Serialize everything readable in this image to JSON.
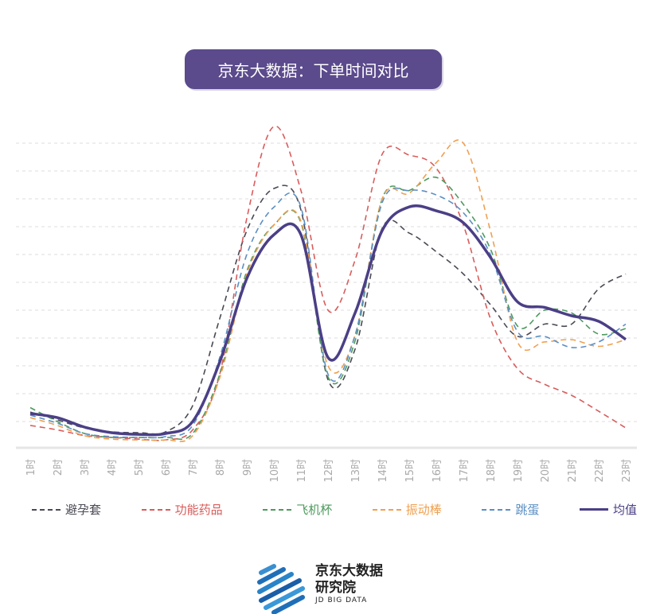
{
  "chart_data": {
    "type": "line",
    "title": "京东大数据：下单时间对比",
    "xlabel": "",
    "ylabel": "",
    "ylim": [
      0,
      12
    ],
    "grid": true,
    "legend_position": "bottom",
    "categories": [
      "1时",
      "2时",
      "3时",
      "4时",
      "5时",
      "6时",
      "7时",
      "8时",
      "9时",
      "10时",
      "11时",
      "12时",
      "13时",
      "14时",
      "15时",
      "16时",
      "17时",
      "18时",
      "19时",
      "20时",
      "21时",
      "22时",
      "23时"
    ],
    "series": [
      {
        "name": "避孕套",
        "color": "#4a4a55",
        "style": "dashed",
        "values": [
          1.34,
          1.06,
          0.77,
          0.63,
          0.6,
          0.63,
          1.57,
          4.7,
          7.86,
          9.37,
          8.6,
          2.5,
          3.6,
          7.94,
          7.77,
          7.1,
          6.3,
          5.2,
          4.06,
          4.5,
          4.5,
          5.77,
          6.3
        ]
      },
      {
        "name": "功能药品",
        "color": "#d95c5c",
        "style": "dashed",
        "values": [
          0.86,
          0.7,
          0.5,
          0.43,
          0.37,
          0.34,
          0.7,
          2.7,
          8.3,
          11.6,
          9.3,
          5.0,
          6.8,
          10.6,
          10.57,
          10.1,
          8.06,
          4.7,
          2.9,
          2.34,
          1.94,
          1.37,
          0.77
        ]
      },
      {
        "name": "飞机杯",
        "color": "#4e9a5e",
        "style": "dashed",
        "values": [
          1.5,
          1.0,
          0.57,
          0.43,
          0.43,
          0.43,
          0.57,
          2.7,
          6.4,
          8.06,
          8.14,
          2.6,
          3.9,
          9.0,
          9.3,
          9.77,
          8.8,
          7.2,
          4.43,
          5.0,
          4.9,
          4.14,
          4.34
        ]
      },
      {
        "name": "振动棒",
        "color": "#f0a050",
        "style": "dashed",
        "values": [
          1.14,
          0.86,
          0.49,
          0.37,
          0.34,
          0.34,
          0.49,
          2.57,
          6.3,
          8.06,
          8.2,
          3.0,
          4.1,
          9.0,
          9.2,
          10.3,
          11.0,
          7.86,
          3.86,
          3.86,
          3.94,
          3.7,
          3.94
        ]
      },
      {
        "name": "跳蛋",
        "color": "#5b8fc4",
        "style": "dashed",
        "values": [
          1.23,
          0.94,
          0.57,
          0.46,
          0.43,
          0.46,
          0.86,
          3.3,
          7.0,
          8.7,
          8.7,
          2.7,
          4.1,
          8.86,
          9.3,
          9.14,
          8.5,
          7.0,
          4.23,
          4.06,
          3.66,
          3.86,
          4.5
        ]
      },
      {
        "name": "均值",
        "color": "#4b3f86",
        "style": "solid",
        "values": [
          1.29,
          1.14,
          0.8,
          0.6,
          0.54,
          0.57,
          1.0,
          3.14,
          6.14,
          7.71,
          7.71,
          3.3,
          4.9,
          7.86,
          8.71,
          8.57,
          8.14,
          6.9,
          5.3,
          5.1,
          4.8,
          4.6,
          3.95
        ]
      }
    ]
  },
  "logo": {
    "line1": "京东大数据",
    "line2": "研究院",
    "sub": "JD BIG DATA"
  }
}
